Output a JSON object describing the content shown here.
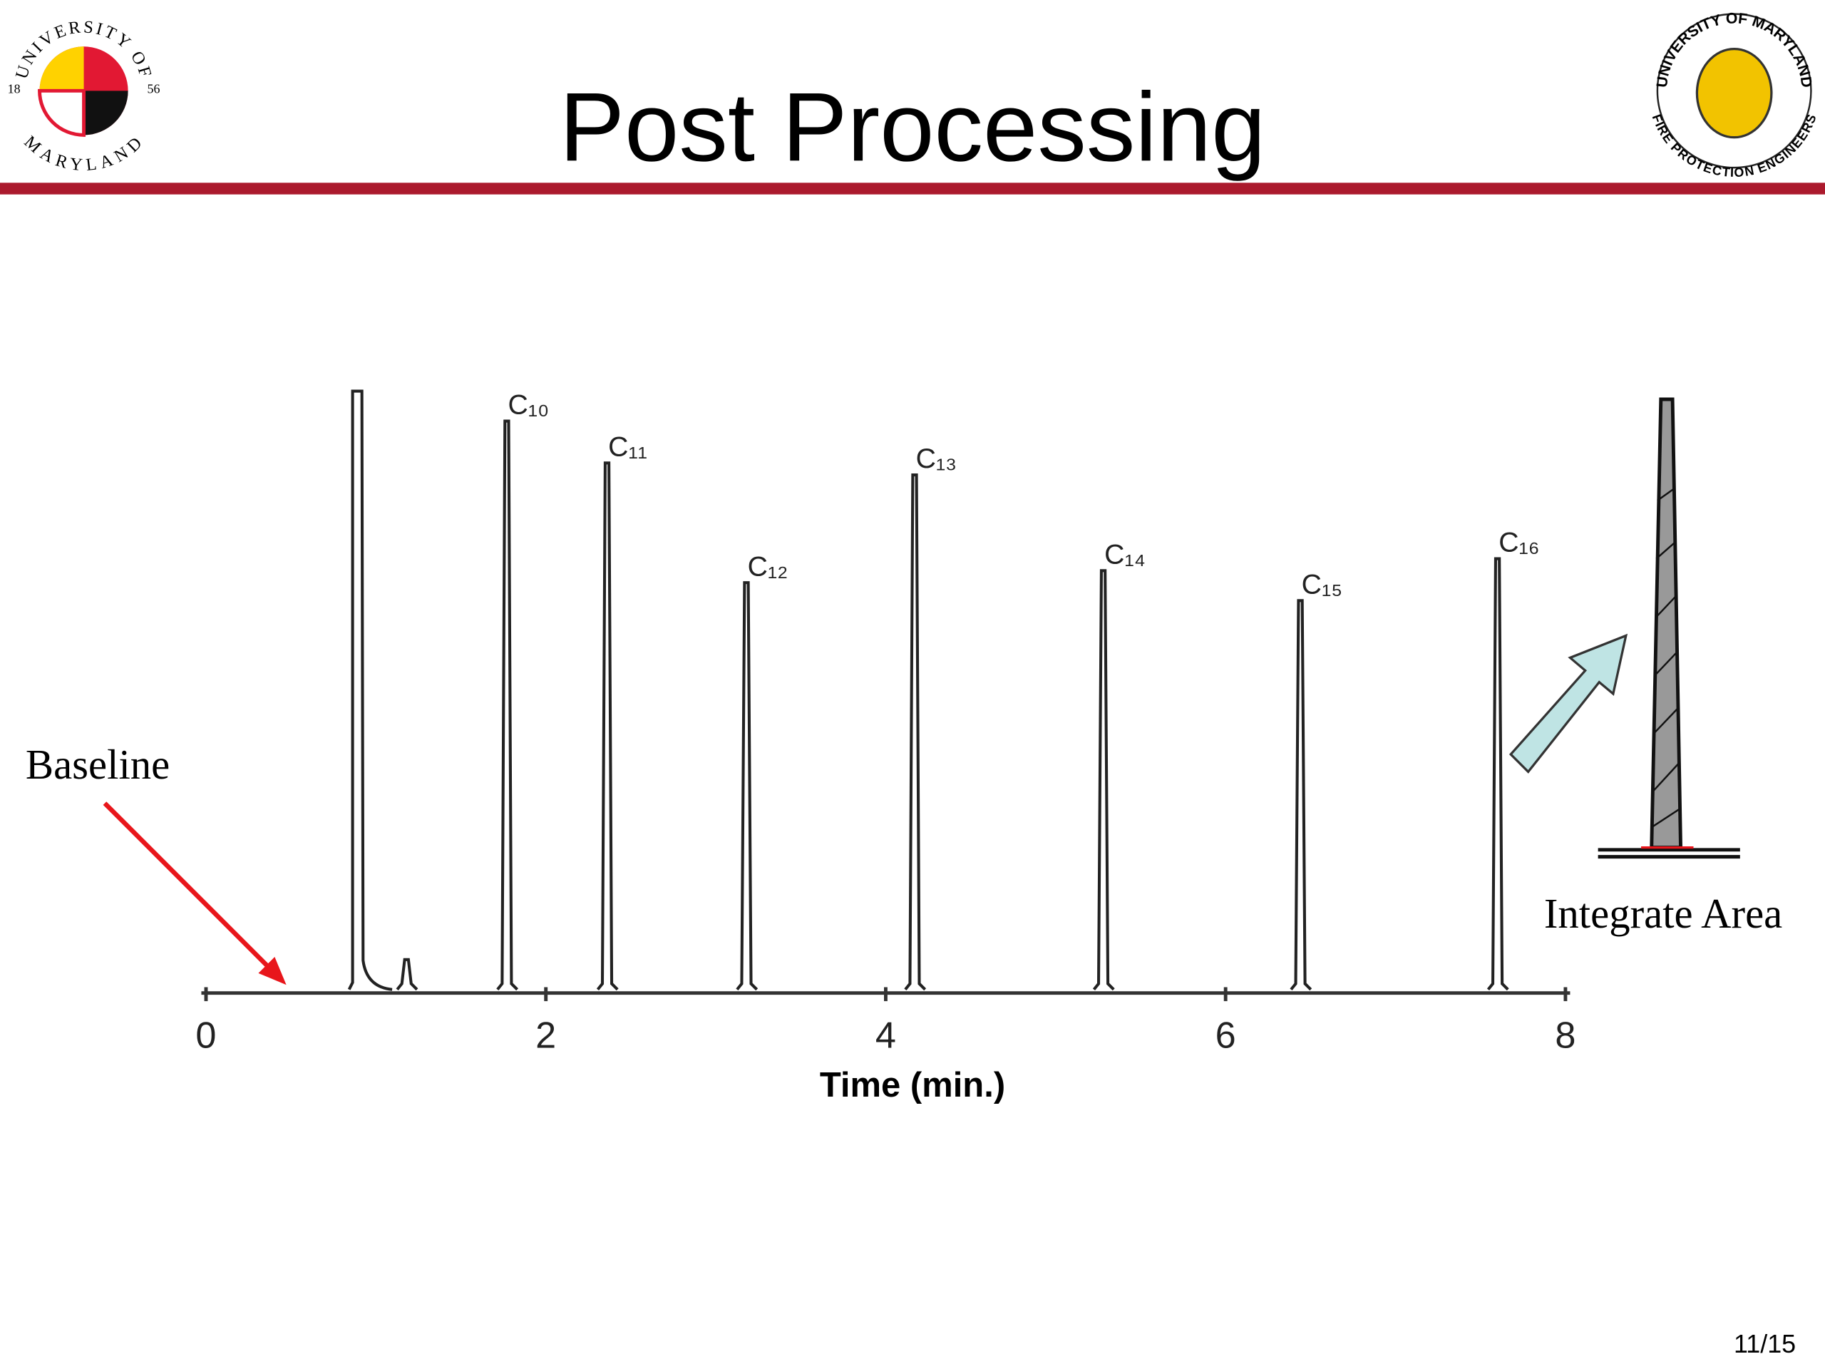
{
  "header": {
    "title": "Post Processing",
    "left_logo": {
      "top": "UNIVERSITY OF",
      "bottom": "MARYLAND",
      "left": "18",
      "right": "56"
    },
    "right_logo": {
      "top": "UNIVERSITY OF MARYLAND",
      "bottom": "FIRE PROTECTION ENGINEERS"
    }
  },
  "chart_data": {
    "type": "chromatogram",
    "x_label": "Time (min.)",
    "x": [
      0.89,
      1.18,
      1.77,
      2.36,
      3.18,
      4.17,
      5.28,
      6.44,
      7.6
    ],
    "values": [
      100,
      5,
      95,
      88,
      68,
      86,
      70,
      65,
      72
    ],
    "labels": [
      null,
      null,
      "C₁₀",
      "C₁₁",
      "C₁₂",
      "C₁₃",
      "C₁₄",
      "C₁₅",
      "C₁₆"
    ],
    "color": "#222222",
    "xlim": [
      0,
      8
    ],
    "xticks": [
      0,
      2,
      4,
      6,
      8
    ],
    "ylim": [
      0,
      100
    ]
  },
  "annotations": {
    "baseline": "Baseline",
    "integrate_area": "Integrate Area"
  },
  "page_number": "11/15"
}
